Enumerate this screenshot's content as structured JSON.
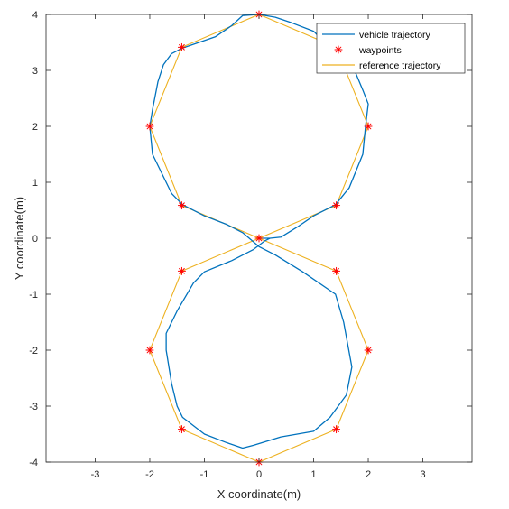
{
  "chart_data": {
    "type": "line",
    "xlabel": "X coordinate(m)",
    "ylabel": "Y coordinate(m)",
    "xlim": [
      -3.9,
      3.9
    ],
    "ylim": [
      -4,
      4
    ],
    "xticks": [
      -3,
      -2,
      -1,
      0,
      1,
      2,
      3
    ],
    "yticks": [
      -4,
      -3,
      -2,
      -1,
      0,
      1,
      2,
      3,
      4
    ],
    "grid": false,
    "legend_position": "top-right",
    "series": [
      {
        "name": "vehicle trajectory",
        "kind": "line",
        "color": "#0072BD",
        "points": [
          [
            0,
            0
          ],
          [
            0.2,
            0
          ],
          [
            0.4,
            0.02
          ],
          [
            0.7,
            0.2
          ],
          [
            1.0,
            0.4
          ],
          [
            1.4,
            0.6
          ],
          [
            1.65,
            0.9
          ],
          [
            1.9,
            1.5
          ],
          [
            1.95,
            2.0
          ],
          [
            2.0,
            2.4
          ],
          [
            1.9,
            2.65
          ],
          [
            1.75,
            3.0
          ],
          [
            1.5,
            3.3
          ],
          [
            1.2,
            3.5
          ],
          [
            1.0,
            3.7
          ],
          [
            0.6,
            3.85
          ],
          [
            0.3,
            3.95
          ],
          [
            0,
            4.0
          ],
          [
            -0.3,
            3.98
          ],
          [
            -0.5,
            3.8
          ],
          [
            -0.8,
            3.6
          ],
          [
            -1.4,
            3.4
          ],
          [
            -1.6,
            3.3
          ],
          [
            -1.75,
            3.1
          ],
          [
            -1.85,
            2.8
          ],
          [
            -1.95,
            2.3
          ],
          [
            -2.0,
            2.0
          ],
          [
            -1.95,
            1.5
          ],
          [
            -1.8,
            1.2
          ],
          [
            -1.6,
            0.8
          ],
          [
            -1.4,
            0.6
          ],
          [
            -1.0,
            0.4
          ],
          [
            -0.6,
            0.25
          ],
          [
            -0.3,
            0.1
          ],
          [
            0,
            -0.15
          ],
          [
            0.3,
            -0.3
          ],
          [
            0.8,
            -0.6
          ],
          [
            1.4,
            -1.0
          ],
          [
            1.55,
            -1.5
          ],
          [
            1.7,
            -2.3
          ],
          [
            1.6,
            -2.8
          ],
          [
            1.3,
            -3.2
          ],
          [
            1.0,
            -3.45
          ],
          [
            0.4,
            -3.55
          ],
          [
            -0.1,
            -3.7
          ],
          [
            -0.3,
            -3.75
          ],
          [
            -0.6,
            -3.65
          ],
          [
            -1.0,
            -3.5
          ],
          [
            -1.4,
            -3.2
          ],
          [
            -1.5,
            -3.0
          ],
          [
            -1.6,
            -2.6
          ],
          [
            -1.7,
            -2.0
          ],
          [
            -1.7,
            -1.7
          ],
          [
            -1.5,
            -1.3
          ],
          [
            -1.2,
            -0.8
          ],
          [
            -1.0,
            -0.6
          ],
          [
            -0.5,
            -0.4
          ],
          [
            -0.1,
            -0.2
          ],
          [
            0.1,
            -0.05
          ],
          [
            0.2,
            0
          ]
        ]
      },
      {
        "name": "waypoints",
        "kind": "markers",
        "color": "#FF0000",
        "points": [
          [
            0,
            0
          ],
          [
            1.414,
            0.586
          ],
          [
            2,
            2
          ],
          [
            1.414,
            3.414
          ],
          [
            0,
            4
          ],
          [
            -1.414,
            3.414
          ],
          [
            -2,
            2
          ],
          [
            -1.414,
            0.586
          ],
          [
            1.414,
            -0.586
          ],
          [
            2,
            -2
          ],
          [
            1.414,
            -3.414
          ],
          [
            0,
            -4
          ],
          [
            -1.414,
            -3.414
          ],
          [
            -2,
            -2
          ],
          [
            -1.414,
            -0.586
          ]
        ]
      },
      {
        "name": "reference trajectory",
        "kind": "line",
        "color": "#EDB120",
        "points": [
          [
            0,
            0
          ],
          [
            1.414,
            0.586
          ],
          [
            2,
            2
          ],
          [
            1.414,
            3.414
          ],
          [
            0,
            4
          ],
          [
            -1.414,
            3.414
          ],
          [
            -2,
            2
          ],
          [
            -1.414,
            0.586
          ],
          [
            0,
            0
          ],
          [
            1.414,
            -0.586
          ],
          [
            2,
            -2
          ],
          [
            1.414,
            -3.414
          ],
          [
            0,
            -4
          ],
          [
            -1.414,
            -3.414
          ],
          [
            -2,
            -2
          ],
          [
            -1.414,
            -0.586
          ],
          [
            0,
            0
          ]
        ]
      }
    ]
  }
}
